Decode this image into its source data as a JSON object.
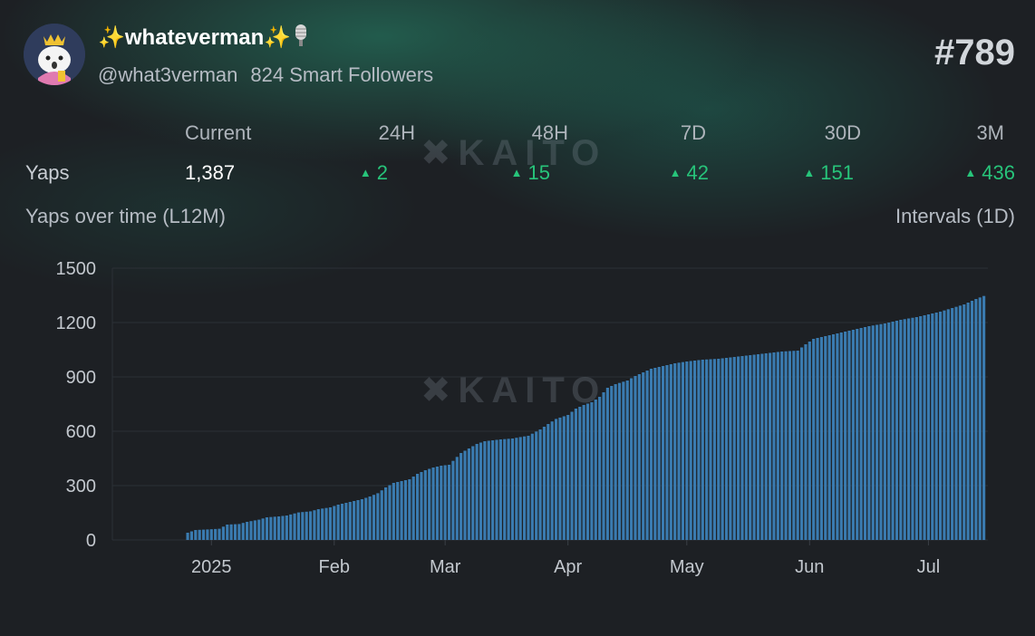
{
  "profile": {
    "display_name": "whateverman",
    "name_prefix": "✨",
    "name_suffix": "✨",
    "handle": "@what3verman",
    "smart_followers": "824 Smart Followers",
    "rank": "#789"
  },
  "stats": {
    "row_label": "Yaps",
    "headers": [
      "Current",
      "24H",
      "48H",
      "7D",
      "30D",
      "3M"
    ],
    "current": "1,387",
    "deltas": [
      "2",
      "15",
      "42",
      "151",
      "436"
    ]
  },
  "chart_section": {
    "title": "Yaps over time (L12M)",
    "interval": "Intervals (1D)"
  },
  "watermark": "KAITO",
  "colors": {
    "bar": "#3a7bb0",
    "positive": "#27c47a",
    "grid": "#2c3036"
  },
  "chart_data": {
    "type": "bar",
    "title": "Yaps over time (L12M)",
    "xlabel": "",
    "ylabel": "",
    "ylim": [
      0,
      1500
    ],
    "yticks": [
      0,
      300,
      600,
      900,
      1200,
      1500
    ],
    "xticks": [
      {
        "label": "2025",
        "date": "2025-01-01"
      },
      {
        "label": "Feb",
        "date": "2025-02-01"
      },
      {
        "label": "Mar",
        "date": "2025-03-01"
      },
      {
        "label": "Apr",
        "date": "2025-04-01"
      },
      {
        "label": "May",
        "date": "2025-05-01"
      },
      {
        "label": "Jun",
        "date": "2025-06-01"
      },
      {
        "label": "Jul",
        "date": "2025-07-01"
      }
    ],
    "x_range": [
      "2024-12-07",
      "2025-07-16"
    ],
    "points": [
      {
        "date": "2024-12-26",
        "value": 40
      },
      {
        "date": "2024-12-28",
        "value": 55
      },
      {
        "date": "2024-12-31",
        "value": 58
      },
      {
        "date": "2025-01-03",
        "value": 62
      },
      {
        "date": "2025-01-05",
        "value": 85
      },
      {
        "date": "2025-01-08",
        "value": 88
      },
      {
        "date": "2025-01-10",
        "value": 100
      },
      {
        "date": "2025-01-13",
        "value": 112
      },
      {
        "date": "2025-01-15",
        "value": 125
      },
      {
        "date": "2025-01-18",
        "value": 130
      },
      {
        "date": "2025-01-20",
        "value": 135
      },
      {
        "date": "2025-01-23",
        "value": 152
      },
      {
        "date": "2025-01-26",
        "value": 158
      },
      {
        "date": "2025-01-28",
        "value": 170
      },
      {
        "date": "2025-01-31",
        "value": 180
      },
      {
        "date": "2025-02-02",
        "value": 195
      },
      {
        "date": "2025-02-05",
        "value": 210
      },
      {
        "date": "2025-02-08",
        "value": 225
      },
      {
        "date": "2025-02-10",
        "value": 240
      },
      {
        "date": "2025-02-12",
        "value": 258
      },
      {
        "date": "2025-02-14",
        "value": 290
      },
      {
        "date": "2025-02-16",
        "value": 315
      },
      {
        "date": "2025-02-18",
        "value": 325
      },
      {
        "date": "2025-02-20",
        "value": 335
      },
      {
        "date": "2025-02-22",
        "value": 365
      },
      {
        "date": "2025-02-24",
        "value": 385
      },
      {
        "date": "2025-02-26",
        "value": 400
      },
      {
        "date": "2025-02-28",
        "value": 410
      },
      {
        "date": "2025-03-02",
        "value": 415
      },
      {
        "date": "2025-03-05",
        "value": 480
      },
      {
        "date": "2025-03-07",
        "value": 505
      },
      {
        "date": "2025-03-09",
        "value": 530
      },
      {
        "date": "2025-03-11",
        "value": 545
      },
      {
        "date": "2025-03-13",
        "value": 550
      },
      {
        "date": "2025-03-15",
        "value": 555
      },
      {
        "date": "2025-03-18",
        "value": 560
      },
      {
        "date": "2025-03-20",
        "value": 568
      },
      {
        "date": "2025-03-22",
        "value": 575
      },
      {
        "date": "2025-03-25",
        "value": 610
      },
      {
        "date": "2025-03-27",
        "value": 640
      },
      {
        "date": "2025-03-29",
        "value": 668
      },
      {
        "date": "2025-04-01",
        "value": 690
      },
      {
        "date": "2025-04-03",
        "value": 725
      },
      {
        "date": "2025-04-05",
        "value": 745
      },
      {
        "date": "2025-04-07",
        "value": 760
      },
      {
        "date": "2025-04-09",
        "value": 790
      },
      {
        "date": "2025-04-11",
        "value": 840
      },
      {
        "date": "2025-04-13",
        "value": 860
      },
      {
        "date": "2025-04-16",
        "value": 880
      },
      {
        "date": "2025-04-18",
        "value": 905
      },
      {
        "date": "2025-04-20",
        "value": 925
      },
      {
        "date": "2025-04-22",
        "value": 945
      },
      {
        "date": "2025-04-25",
        "value": 960
      },
      {
        "date": "2025-04-28",
        "value": 975
      },
      {
        "date": "2025-05-01",
        "value": 985
      },
      {
        "date": "2025-05-05",
        "value": 995
      },
      {
        "date": "2025-05-09",
        "value": 1000
      },
      {
        "date": "2025-05-13",
        "value": 1010
      },
      {
        "date": "2025-05-17",
        "value": 1020
      },
      {
        "date": "2025-05-21",
        "value": 1030
      },
      {
        "date": "2025-05-25",
        "value": 1040
      },
      {
        "date": "2025-05-29",
        "value": 1045
      },
      {
        "date": "2025-05-31",
        "value": 1080
      },
      {
        "date": "2025-06-02",
        "value": 1110
      },
      {
        "date": "2025-06-05",
        "value": 1125
      },
      {
        "date": "2025-06-08",
        "value": 1140
      },
      {
        "date": "2025-06-12",
        "value": 1160
      },
      {
        "date": "2025-06-16",
        "value": 1180
      },
      {
        "date": "2025-06-20",
        "value": 1195
      },
      {
        "date": "2025-06-24",
        "value": 1215
      },
      {
        "date": "2025-06-28",
        "value": 1230
      },
      {
        "date": "2025-07-01",
        "value": 1245
      },
      {
        "date": "2025-07-04",
        "value": 1260
      },
      {
        "date": "2025-07-07",
        "value": 1280
      },
      {
        "date": "2025-07-10",
        "value": 1300
      },
      {
        "date": "2025-07-13",
        "value": 1330
      },
      {
        "date": "2025-07-16",
        "value": 1355
      },
      {
        "date": "2025-07-19",
        "value": 1375
      },
      {
        "date": "2025-07-21",
        "value": 1387
      }
    ]
  }
}
